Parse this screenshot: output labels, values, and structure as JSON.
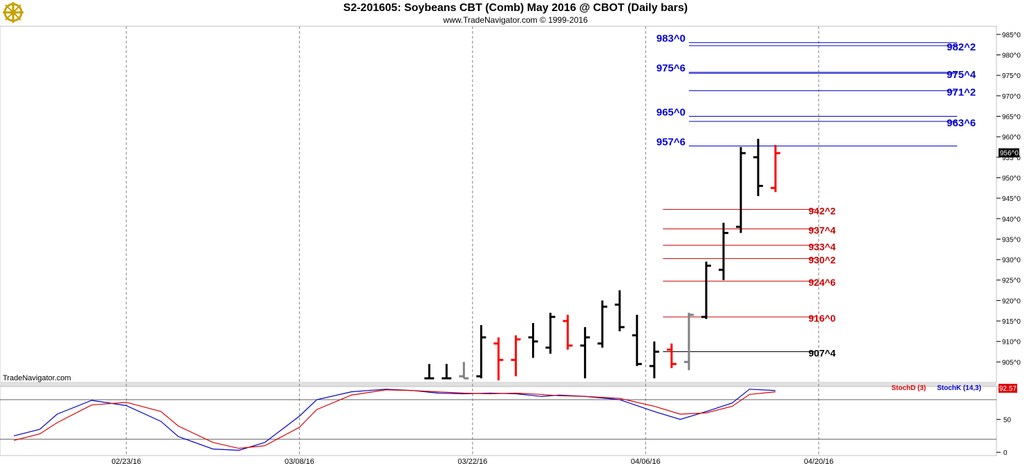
{
  "header": {
    "title": "S2-201605:  Soybeans CBT (Comb) May 2016 @ CBOT  (Daily bars)",
    "subtitle": "www.TradeNavigator.com © 1999-2016",
    "logo_icon": "ship-wheel-icon"
  },
  "watermark": "TradeNavigator.com",
  "colors": {
    "background": "#ffffff",
    "grid": "#808080",
    "up_bar": "#000000",
    "down_bar": "#ff0000",
    "neutral_bar": "#808080",
    "blue_level": "#0000cc",
    "red_level": "#cc0000",
    "black_level": "#000000",
    "stoch_d": "#dd0000",
    "stoch_k": "#0000cc"
  },
  "chart_data": [
    {
      "type": "ohlc",
      "title": "S2-201605:  Soybeans CBT (Comb) May 2016 @ CBOT  (Daily bars)",
      "ylim": [
        900,
        987
      ],
      "y_ticks": [
        {
          "value": 985,
          "label": "985^0"
        },
        {
          "value": 980,
          "label": "980^0"
        },
        {
          "value": 975,
          "label": "975^0"
        },
        {
          "value": 970,
          "label": "970^0"
        },
        {
          "value": 965,
          "label": "965^0"
        },
        {
          "value": 960,
          "label": "960^0"
        },
        {
          "value": 955,
          "label": "955^0"
        },
        {
          "value": 950,
          "label": "950^0"
        },
        {
          "value": 945,
          "label": "945^0"
        },
        {
          "value": 940,
          "label": "940^0"
        },
        {
          "value": 935,
          "label": "935^0"
        },
        {
          "value": 930,
          "label": "930^0"
        },
        {
          "value": 925,
          "label": "925^0"
        },
        {
          "value": 920,
          "label": "920^0"
        },
        {
          "value": 915,
          "label": "915^0"
        },
        {
          "value": 910,
          "label": "910^0"
        },
        {
          "value": 905,
          "label": "905^0"
        }
      ],
      "last_price": {
        "value": 956,
        "label": "956^0"
      },
      "x_labels": [
        {
          "index": 6.5,
          "label": "02/23/16"
        },
        {
          "index": 16.5,
          "label": "03/08/16"
        },
        {
          "index": 26.5,
          "label": "03/22/16"
        },
        {
          "index": 36.5,
          "label": "04/06/16"
        },
        {
          "index": 46.5,
          "label": "04/20/16"
        }
      ],
      "bars": [
        {
          "i": 24,
          "o": 901,
          "h": 904.5,
          "l": 901,
          "c": 901,
          "color": "black"
        },
        {
          "i": 25,
          "o": 901,
          "h": 904.5,
          "l": 901,
          "c": 901,
          "color": "black"
        },
        {
          "i": 26,
          "o": 901.5,
          "h": 905,
          "l": 901,
          "c": 901,
          "color": "gray"
        },
        {
          "i": 27,
          "o": 901.5,
          "h": 914,
          "l": 901,
          "c": 911,
          "color": "black"
        },
        {
          "i": 28,
          "o": 909.5,
          "h": 911,
          "l": 900.5,
          "c": 905.5,
          "color": "red"
        },
        {
          "i": 29,
          "o": 905.5,
          "h": 911.5,
          "l": 901.5,
          "c": 910.5,
          "color": "red"
        },
        {
          "i": 30,
          "o": 911,
          "h": 914.5,
          "l": 906,
          "c": 910,
          "color": "black"
        },
        {
          "i": 31,
          "o": 908.5,
          "h": 917,
          "l": 907,
          "c": 916,
          "color": "black"
        },
        {
          "i": 32,
          "o": 915,
          "h": 916.5,
          "l": 908,
          "c": 909,
          "color": "red"
        },
        {
          "i": 33,
          "o": 909,
          "h": 913.5,
          "l": 901,
          "c": 911,
          "color": "black"
        },
        {
          "i": 34,
          "o": 909.5,
          "h": 920,
          "l": 908.5,
          "c": 918.5,
          "color": "black"
        },
        {
          "i": 35,
          "o": 919,
          "h": 922.5,
          "l": 912.5,
          "c": 913.5,
          "color": "black"
        },
        {
          "i": 36,
          "o": 911.5,
          "h": 916.5,
          "l": 904,
          "c": 904.5,
          "color": "black"
        },
        {
          "i": 37,
          "o": 904,
          "h": 910,
          "l": 901,
          "c": 907.5,
          "color": "black"
        },
        {
          "i": 38,
          "o": 908,
          "h": 909.5,
          "l": 903.5,
          "c": 904.5,
          "color": "red"
        },
        {
          "i": 39,
          "o": 905,
          "h": 917,
          "l": 903,
          "c": 916.5,
          "color": "gray"
        },
        {
          "i": 40,
          "o": 916,
          "h": 929.5,
          "l": 915.5,
          "c": 928.5,
          "color": "black"
        },
        {
          "i": 41,
          "o": 927.5,
          "h": 939,
          "l": 925,
          "c": 936.5,
          "color": "black"
        },
        {
          "i": 42,
          "o": 938,
          "h": 957.5,
          "l": 936.5,
          "c": 956,
          "color": "black"
        },
        {
          "i": 43,
          "o": 955,
          "h": 959.5,
          "l": 945.5,
          "c": 948,
          "color": "black"
        },
        {
          "i": 44,
          "o": 947.5,
          "h": 958,
          "l": 946.5,
          "c": 956,
          "color": "red"
        }
      ],
      "levels": [
        {
          "value": 983.0,
          "label": "983^0",
          "color": "blue",
          "from": 39,
          "to": 54.5,
          "label_pos": "left"
        },
        {
          "value": 982.25,
          "label": "982^2",
          "color": "blue",
          "from": 39,
          "to": 54.5,
          "label_pos": "right"
        },
        {
          "value": 975.75,
          "label": "975^6",
          "color": "blue",
          "from": 39,
          "to": 54.5,
          "label_pos": "left"
        },
        {
          "value": 975.5,
          "label": "975^4",
          "color": "blue",
          "from": 39,
          "to": 54.5,
          "label_pos": "right"
        },
        {
          "value": 971.25,
          "label": "971^2",
          "color": "blue",
          "from": 39,
          "to": 54.5,
          "label_pos": "right"
        },
        {
          "value": 965.0,
          "label": "965^0",
          "color": "blue",
          "from": 39,
          "to": 54.5,
          "label_pos": "left"
        },
        {
          "value": 963.75,
          "label": "963^6",
          "color": "blue",
          "from": 39,
          "to": 54.5,
          "label_pos": "right"
        },
        {
          "value": 957.75,
          "label": "957^6",
          "color": "blue",
          "from": 39,
          "to": 54.5,
          "label_pos": "left"
        },
        {
          "value": 942.25,
          "label": "942^2",
          "color": "red",
          "from": 37.5,
          "to": 46.3,
          "label_pos": "right"
        },
        {
          "value": 937.5,
          "label": "937^4",
          "color": "red",
          "from": 37.5,
          "to": 46.3,
          "label_pos": "right"
        },
        {
          "value": 933.5,
          "label": "933^4",
          "color": "red",
          "from": 37.5,
          "to": 46.3,
          "label_pos": "right"
        },
        {
          "value": 930.25,
          "label": "930^2",
          "color": "red",
          "from": 37.5,
          "to": 46.3,
          "label_pos": "right"
        },
        {
          "value": 924.75,
          "label": "924^6",
          "color": "red",
          "from": 37.5,
          "to": 46.3,
          "label_pos": "right"
        },
        {
          "value": 916.0,
          "label": "916^0",
          "color": "red",
          "from": 37.5,
          "to": 46.3,
          "label_pos": "right"
        },
        {
          "value": 907.5,
          "label": "907^4",
          "color": "black",
          "from": 37.5,
          "to": 46.3,
          "label_pos": "right"
        }
      ]
    },
    {
      "type": "line",
      "ylim": [
        -5,
        100
      ],
      "y_ticks": [
        {
          "value": 50,
          "label": "50"
        },
        {
          "value": 0,
          "label": "0"
        }
      ],
      "ref_lines": [
        80,
        20
      ],
      "legend": [
        {
          "name": "StochD (3)",
          "color": "red"
        },
        {
          "name": "StochK (14,3)",
          "color": "blue"
        }
      ],
      "last_value_label": "92.57",
      "series": [
        {
          "name": "StochK (14,3)",
          "color": "blue",
          "x": [
            0,
            1.5,
            2.5,
            4.5,
            6.5,
            8.5,
            9.5,
            11.5,
            13,
            14.5,
            16.5,
            17.5,
            19.5,
            21.5,
            23,
            24.5,
            26,
            27.5,
            29,
            30.5,
            31.5,
            33,
            35,
            37,
            38.5,
            40,
            41.5,
            42.5,
            44
          ],
          "values": [
            25,
            35,
            58,
            79,
            71,
            47,
            24,
            5,
            3,
            15,
            55,
            80,
            92,
            96,
            94,
            90,
            89,
            90,
            89,
            85,
            87,
            85,
            80,
            62,
            50,
            62,
            75,
            96,
            94
          ]
        },
        {
          "name": "StochD (3)",
          "color": "red",
          "x": [
            0,
            1.5,
            2.5,
            4.5,
            6.5,
            8.5,
            9.5,
            11.5,
            13,
            14.5,
            16.5,
            17.5,
            19.5,
            21.5,
            23,
            24.5,
            26,
            27.5,
            29,
            30.5,
            31.5,
            33,
            35,
            37,
            38.5,
            40,
            41.5,
            42.5,
            44
          ],
          "values": [
            18,
            28,
            45,
            72,
            76,
            62,
            40,
            15,
            6,
            10,
            38,
            65,
            87,
            95,
            94,
            92,
            90,
            89,
            90,
            88,
            86,
            85,
            82,
            70,
            58,
            60,
            70,
            88,
            92
          ]
        }
      ]
    }
  ]
}
